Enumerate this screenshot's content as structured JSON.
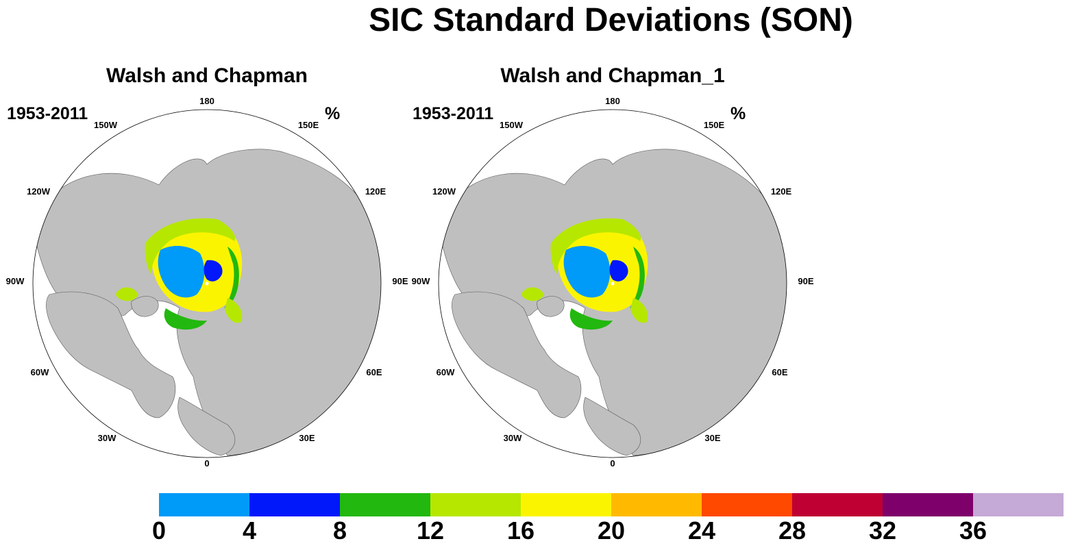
{
  "title": "SIC Standard Deviations (SON)",
  "panels": [
    {
      "title": "Walsh and Chapman",
      "period": "1953-2011",
      "units": "%"
    },
    {
      "title": "Walsh and Chapman_1",
      "period": "1953-2011",
      "units": "%"
    }
  ],
  "longitude_labels": [
    "180",
    "150E",
    "120E",
    "90E",
    "60E",
    "30E",
    "0",
    "30W",
    "60W",
    "90W",
    "120W",
    "150W"
  ],
  "colorbar": {
    "ticks": [
      "0",
      "4",
      "8",
      "12",
      "16",
      "20",
      "24",
      "28",
      "32",
      "36"
    ],
    "colors": [
      "#009af8",
      "#0018fa",
      "#22b80f",
      "#b6e700",
      "#fbf400",
      "#ffba00",
      "#ff4800",
      "#be0033",
      "#7e006a",
      "#c5a9d6"
    ]
  },
  "map_colors": {
    "land": "#bfbfbf",
    "ocean": "#ffffff"
  }
}
